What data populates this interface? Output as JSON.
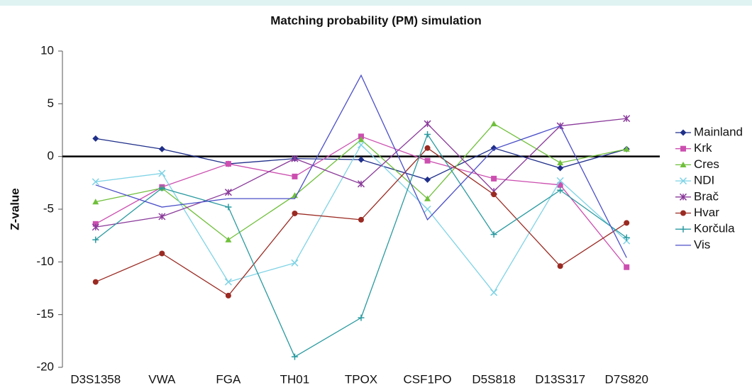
{
  "chart_data": {
    "type": "line",
    "title": "Matching probability (PM) simulation",
    "y_label": "Z-value",
    "categories": [
      "D3S1358",
      "VWA",
      "FGA",
      "TH01",
      "TPOX",
      "CSF1PO",
      "D5S818",
      "D13S317",
      "D7S820"
    ],
    "ylim": [
      -20,
      10
    ],
    "yticks": [
      10,
      5,
      0,
      -5,
      -10,
      -15,
      -20
    ],
    "zero_line": true,
    "legend": "right",
    "series": [
      {
        "name": "Mainland",
        "color": "#1f2f8a",
        "marker": "diamond",
        "values": [
          1.7,
          0.7,
          -0.7,
          -0.2,
          -0.3,
          -2.2,
          0.8,
          -1.1,
          0.7
        ]
      },
      {
        "name": "Krk",
        "color": "#cc4fb0",
        "marker": "square",
        "values": [
          -6.4,
          -2.9,
          -0.7,
          -1.9,
          1.9,
          -0.4,
          -2.1,
          -2.7,
          -10.5
        ]
      },
      {
        "name": "Cres",
        "color": "#6fbf3a",
        "marker": "triangle",
        "values": [
          -4.3,
          -3.0,
          -7.9,
          -3.7,
          1.6,
          -4.0,
          3.1,
          -0.6,
          0.7
        ]
      },
      {
        "name": "NDI",
        "color": "#7fd3e6",
        "marker": "x",
        "values": [
          -2.4,
          -1.6,
          -11.9,
          -10.1,
          1.1,
          -5.0,
          -12.9,
          -2.3,
          -8.0
        ]
      },
      {
        "name": "Brač",
        "color": "#8a3a9a",
        "marker": "star",
        "values": [
          -6.7,
          -5.7,
          -3.4,
          -0.2,
          -2.6,
          3.1,
          -3.3,
          2.9,
          3.6
        ]
      },
      {
        "name": "Hvar",
        "color": "#9a2a22",
        "marker": "circle",
        "values": [
          -11.9,
          -9.2,
          -13.2,
          -5.4,
          -6.0,
          0.8,
          -3.6,
          -10.4,
          -6.3
        ]
      },
      {
        "name": "Korčula",
        "color": "#2a9aa0",
        "marker": "plus",
        "values": [
          -7.9,
          -3.0,
          -4.8,
          -19.0,
          -15.3,
          2.1,
          -7.4,
          -3.2,
          -7.7
        ]
      },
      {
        "name": "Vis",
        "color": "#4b4fc8",
        "marker": "none",
        "values": [
          -2.7,
          -4.8,
          -4.0,
          -4.0,
          7.7,
          -6.0,
          0.7,
          2.9,
          -9.6
        ]
      }
    ]
  }
}
